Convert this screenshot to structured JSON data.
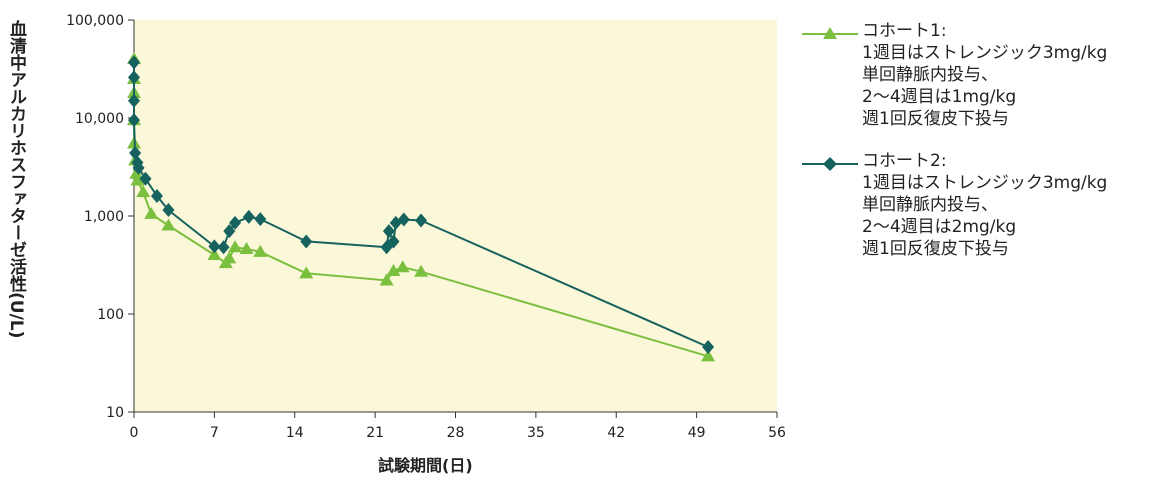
{
  "chart_data": {
    "type": "line",
    "xlabel": "試験期間(日)",
    "ylabel": "血清中アルカリホスファターゼ活性(U/L)",
    "x_ticks": [
      0,
      7,
      14,
      21,
      28,
      35,
      42,
      49,
      56
    ],
    "y_ticks": [
      10,
      100,
      1000,
      10000,
      100000
    ],
    "y_tick_labels": [
      "10",
      "100",
      "1,000",
      "10,000",
      "100,000"
    ],
    "xlim": [
      0,
      56
    ],
    "ylim": [
      10,
      100000
    ],
    "y_scale": "log",
    "plot_background": "#FBF7D9",
    "legend_position": "right",
    "series": [
      {
        "name": "コホート1:",
        "legend_lines": [
          "コホート1:",
          "1週目はストレンジック3mg/kg",
          "単回静脈内投与、",
          "2〜4週目は1mg/kg",
          "週1回反復皮下投与"
        ],
        "color": "#7BBF3F",
        "marker": "triangle",
        "points": [
          [
            0,
            40000
          ],
          [
            0,
            25000
          ],
          [
            0,
            18000
          ],
          [
            0,
            9500
          ],
          [
            0,
            5500
          ],
          [
            0.1,
            3700
          ],
          [
            0.2,
            2700
          ],
          [
            0.3,
            2300
          ],
          [
            0.8,
            1750
          ],
          [
            1.5,
            1050
          ],
          [
            3,
            800
          ],
          [
            7,
            400
          ],
          [
            8,
            330
          ],
          [
            8.3,
            370
          ],
          [
            8.8,
            480
          ],
          [
            9.8,
            460
          ],
          [
            11,
            430
          ],
          [
            15,
            260
          ],
          [
            22,
            220
          ],
          [
            22.6,
            275
          ],
          [
            23.4,
            300
          ],
          [
            25,
            270
          ],
          [
            50,
            37
          ]
        ]
      },
      {
        "name": "コホート2:",
        "legend_lines": [
          "コホート2:",
          "1週目はストレンジック3mg/kg",
          "単回静脈内投与、",
          "2〜4週目は2mg/kg",
          "週1回反復皮下投与"
        ],
        "color": "#16625E",
        "marker": "diamond",
        "points": [
          [
            0,
            37000
          ],
          [
            0,
            26000
          ],
          [
            0,
            15000
          ],
          [
            0,
            9500
          ],
          [
            0.1,
            4400
          ],
          [
            0.3,
            3500
          ],
          [
            0.4,
            3100
          ],
          [
            1,
            2400
          ],
          [
            2,
            1600
          ],
          [
            3,
            1150
          ],
          [
            7,
            490
          ],
          [
            7.8,
            480
          ],
          [
            8.3,
            700
          ],
          [
            8.8,
            850
          ],
          [
            10,
            980
          ],
          [
            11,
            930
          ],
          [
            15,
            550
          ],
          [
            22,
            480
          ],
          [
            22.2,
            700
          ],
          [
            22.6,
            550
          ],
          [
            22.8,
            850
          ],
          [
            23.5,
            920
          ],
          [
            25,
            900
          ],
          [
            50,
            46
          ]
        ]
      }
    ]
  }
}
